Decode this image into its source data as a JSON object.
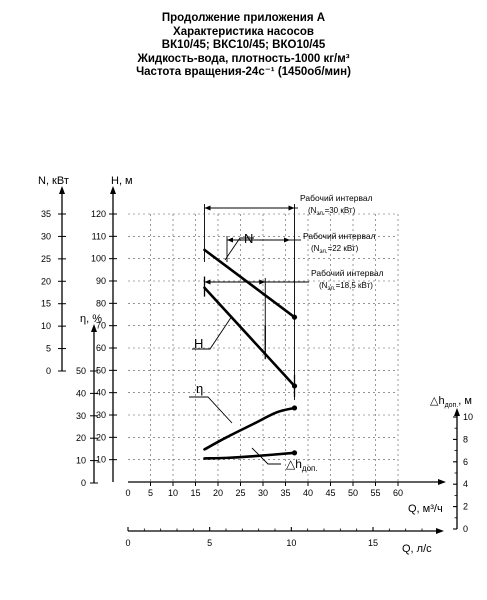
{
  "header": {
    "line1": "Продолжение приложения А",
    "line2": "Характеристика насосов",
    "line3": "ВК10/45; ВКС10/45; ВКО10/45",
    "line4": "Жидкость-вода, плотность-1000 кг/м³",
    "line5": "Частота вращения-24с⁻¹ (1450об/мин)"
  },
  "chart_data": {
    "type": "line",
    "title": "",
    "axes": {
      "q_m3h": {
        "label": "Q, м³/ч",
        "range": [
          0,
          60
        ],
        "ticks": [
          0,
          5,
          10,
          15,
          20,
          25,
          30,
          35,
          40,
          45,
          50,
          55,
          60
        ]
      },
      "q_ls": {
        "label": "Q, л/с",
        "range": [
          0,
          16.667
        ],
        "ticks": [
          0,
          5,
          10,
          15
        ]
      },
      "H": {
        "label": "H, м",
        "range": [
          0,
          120
        ],
        "ticks": [
          10,
          20,
          30,
          40,
          50,
          60,
          70,
          80,
          90,
          100,
          110,
          120
        ]
      },
      "N": {
        "label": "N, кВт",
        "range": [
          0,
          35
        ],
        "ticks": [
          0,
          5,
          10,
          15,
          20,
          25,
          30,
          35
        ]
      },
      "eta": {
        "label": "η, %",
        "range": [
          0,
          50
        ],
        "ticks": [
          0,
          10,
          20,
          30,
          40,
          50
        ]
      },
      "dh": {
        "label": "△hдоп., м",
        "range": [
          0,
          10
        ],
        "ticks": [
          0,
          2,
          4,
          6,
          8,
          10
        ]
      }
    },
    "grid": true,
    "series": [
      {
        "name": "N",
        "axis": "N",
        "x": [
          17,
          37
        ],
        "y": [
          27,
          12
        ]
      },
      {
        "name": "H",
        "axis": "H",
        "x": [
          17,
          37
        ],
        "y": [
          87,
          43
        ]
      },
      {
        "name": "η",
        "axis": "eta",
        "x": [
          17,
          22,
          28,
          33,
          37
        ],
        "y": [
          15,
          20.5,
          26.5,
          31.5,
          33.5
        ]
      },
      {
        "name": "△hдоп.",
        "axis": "dh",
        "x": [
          17,
          22,
          28,
          37
        ],
        "y": [
          6.3,
          6.35,
          6.5,
          6.8
        ]
      }
    ],
    "series_labels": {
      "N": "N",
      "H": "H",
      "eta": "η",
      "dh_prefix": "△h",
      "dh_sub": "доп."
    },
    "intervals": [
      {
        "label": "Рабочий интервал",
        "sub_prefix": "(N",
        "sub_sub": "эл.",
        "sub_rest": "=30 кВт)",
        "x_start": 17,
        "x_end": 37
      },
      {
        "label": "Рабочий интервал",
        "sub_prefix": "(N",
        "sub_sub": "эл.",
        "sub_rest": "=22 кВт)",
        "x_start": 22,
        "x_end": 36
      },
      {
        "label": "Рабочий интервал",
        "sub_prefix": "(N",
        "sub_sub": "эл.",
        "sub_rest": "=18,5 кВт)",
        "x_start": 17,
        "x_end": 30.5
      }
    ]
  }
}
